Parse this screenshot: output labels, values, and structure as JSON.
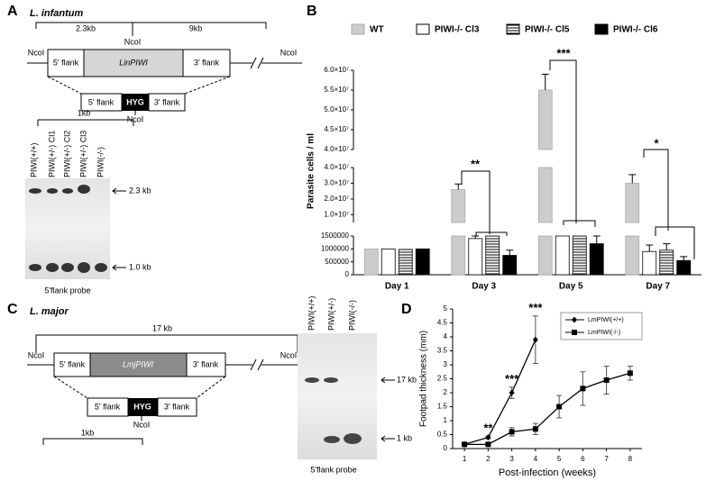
{
  "panel_A": {
    "letter": "A",
    "species": "L. infantum",
    "sizes": [
      "2.3kb",
      "9kb",
      "1kb"
    ],
    "sites": [
      "NcoI",
      "NcoI",
      "NcoI",
      "NcoI"
    ],
    "wt_locus": [
      "5' flank",
      "LinPIWI",
      "3' flank"
    ],
    "construct": [
      "5' flank",
      "HYG",
      "3' flank"
    ],
    "lanes": [
      "PIWI(+/+)",
      "PIWI(+/-) Cl1",
      "PIWI(+/-) Cl2",
      "PIWI(+/-) Cl3",
      "PIWI(-/-)"
    ],
    "bands": [
      "2.3 kb",
      "1.0 kb"
    ],
    "probe": "5'flank probe"
  },
  "panel_C": {
    "letter": "C",
    "species": "L. major",
    "sizes": [
      "17 kb",
      "1kb"
    ],
    "sites": [
      "NcoI",
      "NcoI",
      "NcoI"
    ],
    "wt_locus": [
      "5' flank",
      "LmjPIWI",
      "3' flank"
    ],
    "construct": [
      "5' flank",
      "HYG",
      "3' flank"
    ],
    "lanes": [
      "PIWI(+/+)",
      "PIWI(+/-)",
      "PIWI(-/-)"
    ],
    "bands": [
      "17 kb",
      "1 kb"
    ],
    "probe": "5'flank probe"
  },
  "chart_data": [
    {
      "type": "bar",
      "letter": "B",
      "y_label": "Parasite cells / ml",
      "categories": [
        "Day 1",
        "Day 3",
        "Day 5",
        "Day 7"
      ],
      "series": [
        {
          "name": "WT",
          "color": "#cccccc",
          "values": [
            1000000,
            26000000,
            55000000,
            30000000
          ],
          "errors": [
            null,
            3500000,
            4000000,
            5500000
          ]
        },
        {
          "name": "PIWI-/- Cl3",
          "color": "#ffffff",
          "values": [
            1000000,
            1400000,
            1500000,
            900000
          ],
          "errors": [
            null,
            100000,
            null,
            250000
          ]
        },
        {
          "name": "PIWI-/- Cl5",
          "color": "#000000",
          "hatch": true,
          "values": [
            980000,
            1500000,
            1500000,
            950000
          ],
          "errors": [
            null,
            null,
            null,
            250000
          ]
        },
        {
          "name": "PIWI-/- Cl6",
          "color": "#000000",
          "values": [
            1000000,
            750000,
            1200000,
            550000
          ],
          "errors": [
            null,
            200000,
            300000,
            150000
          ]
        }
      ],
      "y_segments": [
        {
          "ylim": [
            0,
            1500000
          ],
          "yticks": [
            0,
            500000,
            1000000,
            1500000
          ]
        },
        {
          "ylim": [
            5000000,
            40000000
          ],
          "yticks": [
            {
              "value": 10000000,
              "label": "1.0×10⁷"
            },
            {
              "value": 20000000,
              "label": "2.0×10⁷"
            },
            {
              "value": 30000000,
              "label": "3.0×10⁷"
            },
            {
              "value": 40000000,
              "label": "4.0×10⁷"
            }
          ]
        },
        {
          "ylim": [
            40000000,
            60000000
          ],
          "yticks": [
            {
              "value": 40000000,
              "label": "4.0×10⁷"
            },
            {
              "value": 45000000,
              "label": "4.5×10⁷"
            },
            {
              "value": 50000000,
              "label": "5.0×10⁷"
            },
            {
              "value": 55000000,
              "label": "5.5×10⁷"
            },
            {
              "value": 60000000,
              "label": "6.0×10⁷"
            }
          ]
        }
      ],
      "annotations": [
        "**",
        "***",
        "*"
      ]
    },
    {
      "type": "line",
      "letter": "D",
      "x_label": "Post-infection (weeks)",
      "y_label": "Footpad thickness (mm)",
      "x": [
        1,
        2,
        3,
        4,
        5,
        6,
        7,
        8
      ],
      "xlim": [
        0.5,
        8.5
      ],
      "xticks": [
        1,
        2,
        3,
        4,
        5,
        6,
        7,
        8
      ],
      "ylim": [
        0,
        5
      ],
      "yticks": [
        0,
        0.5,
        1,
        1.5,
        2,
        2.5,
        3,
        3.5,
        4,
        4.5,
        5
      ],
      "series": [
        {
          "name": "LmPIWI(+/+)",
          "color": "#000000",
          "marker": "diamond",
          "values": [
            0.15,
            0.4,
            2.0,
            3.9,
            null,
            null,
            null,
            null
          ],
          "errors": [
            0.05,
            0.05,
            0.2,
            0.85,
            null,
            null,
            null,
            null
          ]
        },
        {
          "name": "LmPIWI(-/-)",
          "color": "#000000",
          "marker": "square",
          "values": [
            0.15,
            0.15,
            0.6,
            0.7,
            1.5,
            2.15,
            2.45,
            2.7
          ],
          "errors": [
            0.05,
            0.05,
            0.15,
            0.2,
            0.4,
            0.6,
            0.5,
            0.25
          ]
        }
      ],
      "annotations": [
        {
          "x": 2,
          "label": "**"
        },
        {
          "x": 3,
          "label": "***"
        },
        {
          "x": 4,
          "label": "***"
        }
      ]
    }
  ]
}
